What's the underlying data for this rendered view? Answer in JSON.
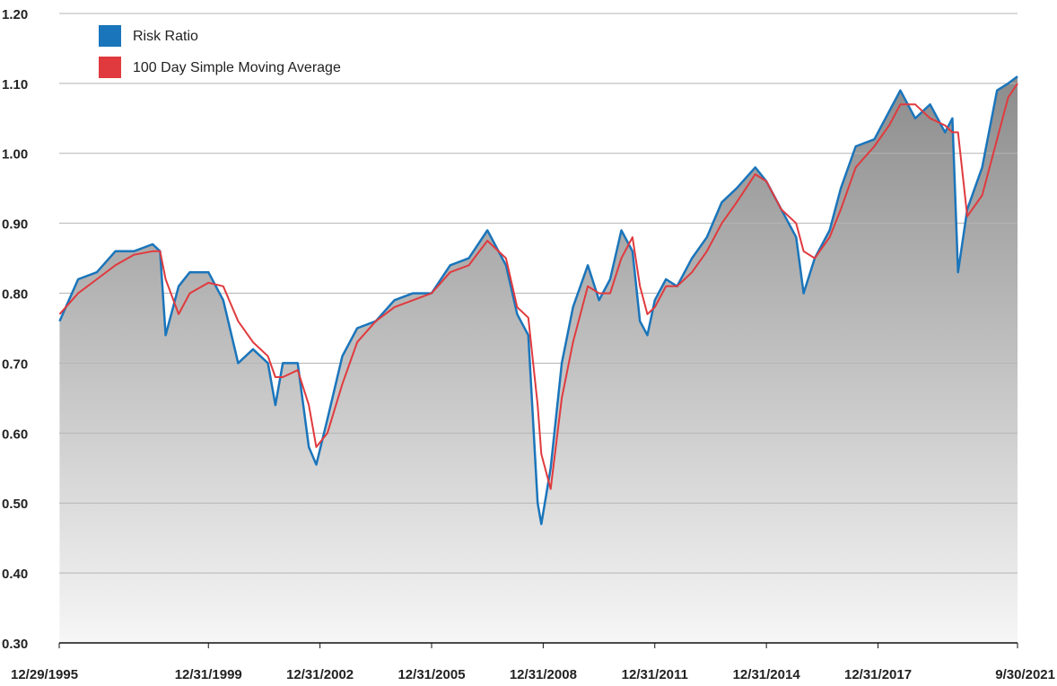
{
  "chart_data": {
    "type": "line",
    "x": [
      1996.0,
      1996.5,
      1997.0,
      1997.5,
      1998.0,
      1998.5,
      1998.7,
      1998.85,
      1999.2,
      1999.5,
      2000.0,
      2000.4,
      2000.8,
      2001.2,
      2001.6,
      2001.8,
      2002.0,
      2002.4,
      2002.7,
      2002.9,
      2003.2,
      2003.6,
      2004.0,
      2004.5,
      2005.0,
      2005.5,
      2006.0,
      2006.5,
      2007.0,
      2007.5,
      2008.0,
      2008.3,
      2008.6,
      2008.85,
      2008.95,
      2009.2,
      2009.5,
      2009.8,
      2010.2,
      2010.5,
      2010.8,
      2011.1,
      2011.4,
      2011.6,
      2011.8,
      2012.0,
      2012.3,
      2012.6,
      2013.0,
      2013.4,
      2013.8,
      2014.2,
      2014.7,
      2015.0,
      2015.4,
      2015.8,
      2016.0,
      2016.3,
      2016.7,
      2017.0,
      2017.4,
      2017.9,
      2018.3,
      2018.6,
      2019.0,
      2019.4,
      2019.8,
      2020.0,
      2020.15,
      2020.4,
      2020.8,
      2021.2,
      2021.5,
      2021.75
    ],
    "series": [
      {
        "name": "Risk Ratio",
        "color": "#1a75bb",
        "values": [
          0.76,
          0.82,
          0.83,
          0.86,
          0.86,
          0.87,
          0.86,
          0.74,
          0.81,
          0.83,
          0.83,
          0.79,
          0.7,
          0.72,
          0.7,
          0.64,
          0.7,
          0.7,
          0.58,
          0.555,
          0.62,
          0.71,
          0.75,
          0.76,
          0.79,
          0.8,
          0.8,
          0.84,
          0.85,
          0.89,
          0.84,
          0.77,
          0.74,
          0.5,
          0.47,
          0.55,
          0.7,
          0.78,
          0.84,
          0.79,
          0.82,
          0.89,
          0.86,
          0.76,
          0.74,
          0.79,
          0.82,
          0.81,
          0.85,
          0.88,
          0.93,
          0.95,
          0.98,
          0.96,
          0.92,
          0.88,
          0.8,
          0.85,
          0.89,
          0.95,
          1.01,
          1.02,
          1.06,
          1.09,
          1.05,
          1.07,
          1.03,
          1.05,
          0.83,
          0.92,
          0.98,
          1.09,
          1.1,
          1.11
        ]
      },
      {
        "name": "100 Day Simple Moving Average",
        "color": "#e03a3e",
        "values": [
          0.77,
          0.8,
          0.82,
          0.84,
          0.855,
          0.86,
          0.86,
          0.82,
          0.77,
          0.8,
          0.815,
          0.81,
          0.76,
          0.73,
          0.71,
          0.68,
          0.68,
          0.69,
          0.64,
          0.58,
          0.6,
          0.67,
          0.73,
          0.76,
          0.78,
          0.79,
          0.8,
          0.83,
          0.84,
          0.875,
          0.85,
          0.78,
          0.765,
          0.64,
          0.57,
          0.52,
          0.65,
          0.73,
          0.81,
          0.8,
          0.8,
          0.85,
          0.88,
          0.81,
          0.77,
          0.78,
          0.81,
          0.81,
          0.83,
          0.86,
          0.9,
          0.93,
          0.97,
          0.96,
          0.92,
          0.9,
          0.86,
          0.85,
          0.88,
          0.92,
          0.98,
          1.01,
          1.04,
          1.07,
          1.07,
          1.05,
          1.04,
          1.03,
          1.03,
          0.91,
          0.94,
          1.02,
          1.08,
          1.1
        ]
      }
    ],
    "xlim": [
      1995.99,
      2021.75
    ],
    "xticks": [
      {
        "value": 1995.99,
        "label": "12/29/1995"
      },
      {
        "value": 2000.0,
        "label": "12/31/1999"
      },
      {
        "value": 2003.0,
        "label": "12/31/2002"
      },
      {
        "value": 2006.0,
        "label": "12/31/2005"
      },
      {
        "value": 2009.0,
        "label": "12/31/2008"
      },
      {
        "value": 2012.0,
        "label": "12/31/2011"
      },
      {
        "value": 2015.0,
        "label": "12/31/2014"
      },
      {
        "value": 2018.0,
        "label": "12/31/2017"
      },
      {
        "value": 2021.75,
        "label": "9/30/2021"
      }
    ],
    "ylim": [
      0.3,
      1.2
    ],
    "yticks": [
      {
        "value": 0.3,
        "label": "0.30"
      },
      {
        "value": 0.4,
        "label": "0.40"
      },
      {
        "value": 0.5,
        "label": "0.50"
      },
      {
        "value": 0.6,
        "label": "0.60"
      },
      {
        "value": 0.7,
        "label": "0.70"
      },
      {
        "value": 0.8,
        "label": "0.80"
      },
      {
        "value": 0.9,
        "label": "0.90"
      },
      {
        "value": 1.0,
        "label": "1.00"
      },
      {
        "value": 1.1,
        "label": "1.10"
      },
      {
        "value": 1.2,
        "label": "1.20"
      }
    ],
    "grid": true,
    "legend": "upper left"
  }
}
